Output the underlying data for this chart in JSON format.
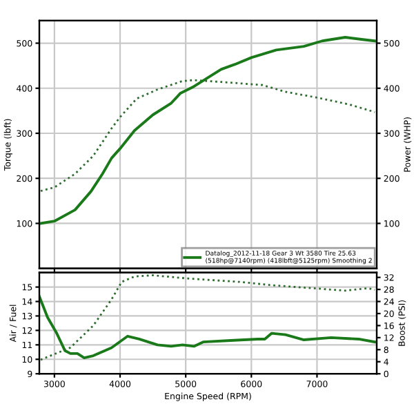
{
  "chart_data": [
    {
      "type": "line",
      "ylabel": "Torque (lbft)",
      "y2label": "Power (WHP)",
      "xlim": [
        2770,
        7910
      ],
      "xticks": [
        3000,
        4000,
        5000,
        6000,
        7000
      ],
      "ylim": [
        0,
        550
      ],
      "yticks": [
        100,
        200,
        300,
        400,
        500
      ],
      "y2lim": [
        0,
        550
      ],
      "y2ticks": [
        100,
        200,
        300,
        400,
        500
      ],
      "grid": true,
      "legend": "bottom right",
      "tick_labels": "y",
      "marker": "none",
      "series": [
        {
          "name": "Datalog_2012-11-18 Gear 3 Wt 3580 Tire 25.63\n(518hp@7140rpm) (418lbft@5125rpm) Smoothing 2",
          "axis": "y2",
          "color": "#1a7a1a",
          "line_style": "solid",
          "x": [
            2790,
            3000,
            3314,
            3557,
            3732,
            3871,
            4000,
            4220,
            4500,
            4780,
            4920,
            5125,
            5540,
            5750,
            6000,
            6380,
            6800,
            7080,
            7430,
            7700,
            7880
          ],
          "values": [
            100,
            105,
            130,
            171,
            210,
            245,
            266,
            306,
            341,
            367,
            389,
            404,
            442,
            453,
            468,
            485,
            493,
            505,
            513,
            508,
            505
          ]
        },
        {
          "axis": "y",
          "color": "#2e6b2e",
          "line_style": "dotted",
          "x": [
            2790,
            3000,
            3314,
            3592,
            3871,
            4000,
            4254,
            4568,
            4951,
            5125,
            5540,
            6170,
            6520,
            7010,
            7490,
            7770,
            7880
          ],
          "values": [
            172,
            180,
            210,
            250,
            311,
            336,
            377,
            397,
            416,
            418,
            414,
            407,
            392,
            379,
            364,
            352,
            347
          ]
        }
      ]
    },
    {
      "type": "line",
      "xlabel": "Engine Speed (RPM)",
      "ylabel": "Air / Fuel",
      "y2label": "Boost (PSI)",
      "xlim": [
        2770,
        7910
      ],
      "xticks": [
        3000,
        4000,
        5000,
        6000,
        7000
      ],
      "ylim": [
        9,
        16
      ],
      "yticks": [
        9,
        10,
        11,
        12,
        13,
        14,
        15
      ],
      "y2lim": [
        0,
        33.6
      ],
      "y2ticks": [
        0,
        4,
        8,
        12,
        16,
        20,
        24,
        28,
        32
      ],
      "grid": true,
      "marker": "none",
      "series": [
        {
          "axis": "y",
          "color": "#1a7a1a",
          "line_style": "solid",
          "x": [
            2770,
            2895,
            3035,
            3160,
            3244,
            3350,
            3453,
            3592,
            3870,
            4115,
            4290,
            4570,
            4777,
            4951,
            5125,
            5265,
            5683,
            6100,
            6205,
            6310,
            6520,
            6800,
            7216,
            7634,
            7880
          ],
          "values": [
            14.35,
            12.9,
            11.8,
            10.6,
            10.4,
            10.4,
            10.1,
            10.25,
            10.8,
            11.6,
            11.4,
            11.0,
            10.9,
            11.0,
            10.9,
            11.2,
            11.3,
            11.4,
            11.4,
            11.8,
            11.7,
            11.35,
            11.5,
            11.4,
            11.2
          ]
        },
        {
          "axis": "y2",
          "color": "#2e6b2e",
          "line_style": "dotted",
          "x": [
            2790,
            3244,
            3592,
            3870,
            4024,
            4220,
            4500,
            5000,
            5822,
            6310,
            6940,
            7430,
            7780,
            7880
          ],
          "values": [
            4.65,
            8.7,
            16,
            24.7,
            30.5,
            32.3,
            32.7,
            31.7,
            30.5,
            29.4,
            28.4,
            27.6,
            28.4,
            27.9
          ]
        }
      ]
    }
  ]
}
